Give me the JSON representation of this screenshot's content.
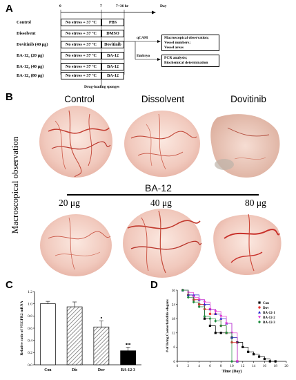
{
  "panelA": {
    "letter": "A",
    "timeline": {
      "t0": "0",
      "t7": "7",
      "t36": "7+36 hr",
      "unit": "Day"
    },
    "rows": [
      {
        "group": "Control",
        "stress": "No stress + 37 °C",
        "treat": "PBS"
      },
      {
        "group": "Dissolvent",
        "stress": "No stress + 37 °C",
        "treat": "DMSO"
      },
      {
        "group": "Dovitinib (40 μg)",
        "stress": "No stress + 37 °C",
        "treat": "Dovitinib"
      },
      {
        "group": "BA-12₁ (20 μg)",
        "stress": "No stress + 37 °C",
        "treat": "BA-12"
      },
      {
        "group": "BA-12₂ (40 μg)",
        "stress": "No stress + 37 °C",
        "treat": "BA-12"
      },
      {
        "group": "BA-12₃ (80 μg)",
        "stress": "No stress + 37 °C",
        "treat": "BA-12"
      }
    ],
    "qcam_label": "qCAM",
    "embryo_label": "Embryo",
    "qcam_box": [
      "Macroscopical observation;",
      "Vessel numbers;",
      "Vessel areas"
    ],
    "embryo_box": [
      "PCR analysis;",
      "Biochemical determination"
    ],
    "drug_note": "Drug-loading sponges"
  },
  "panelB": {
    "letter": "B",
    "side_label": "Macroscopical observation",
    "top_labels": [
      "Control",
      "Dissolvent",
      "Dovitinib"
    ],
    "group_label": "BA-12",
    "dose_labels": [
      "20 μg",
      "40 μg",
      "80 μg"
    ]
  },
  "panelC": {
    "letter": "C",
    "chart_data": {
      "type": "bar",
      "ylabel": "Relative ratio of VEGFR2 mRNA",
      "categories": [
        "Con",
        "Dis",
        "Dov",
        "BA-12-3"
      ],
      "values": [
        1.0,
        0.95,
        0.62,
        0.23
      ],
      "errors": [
        0.04,
        0.08,
        0.1,
        0.06
      ],
      "significance": [
        "",
        "",
        "•",
        "•••"
      ],
      "ylim": [
        0,
        1.2
      ],
      "yticks": [
        "0.0",
        "0.2",
        "0.4",
        "0.6",
        "0.8",
        "1.0",
        "1.2"
      ]
    }
  },
  "panelD": {
    "letter": "D",
    "chart_data": {
      "type": "line",
      "xlabel": "Time (Day)",
      "ylabel": "# of living Caenorhabditis elegans",
      "xlim": [
        0,
        20
      ],
      "ylim": [
        0,
        30
      ],
      "xticks": [
        "0",
        "2",
        "4",
        "6",
        "8",
        "10",
        "12",
        "14",
        "16",
        "18",
        "20"
      ],
      "yticks": [
        "0",
        "6",
        "12",
        "18",
        "24",
        "30"
      ],
      "series": [
        {
          "name": "Con",
          "color": "#000000",
          "marker": "square",
          "x": [
            1,
            2,
            3,
            4,
            5,
            6,
            7,
            8,
            9,
            10,
            11,
            12,
            13,
            14,
            15,
            16,
            17,
            18
          ],
          "y": [
            30,
            28,
            26,
            24,
            18,
            15,
            12,
            12,
            12,
            10,
            8,
            6,
            4,
            3,
            2,
            1,
            0,
            0
          ]
        },
        {
          "name": "Dov",
          "color": "#e8312f",
          "marker": "circle",
          "x": [
            1,
            2,
            3,
            4,
            5,
            6,
            7,
            8,
            9,
            10,
            11
          ],
          "y": [
            30,
            28,
            26,
            24,
            22,
            20,
            20,
            15,
            12,
            8,
            0
          ]
        },
        {
          "name": "BA-12-1",
          "color": "#2222cc",
          "marker": "triangle",
          "x": [
            1,
            2,
            3,
            4,
            5,
            6,
            7,
            8,
            9,
            10,
            11
          ],
          "y": [
            30,
            28,
            28,
            26,
            24,
            22,
            20,
            18,
            16,
            10,
            0
          ]
        },
        {
          "name": "BA-12-2",
          "color": "#e030d0",
          "marker": "triangle-down",
          "x": [
            1,
            2,
            3,
            4,
            5,
            6,
            7,
            8,
            9,
            10,
            11
          ],
          "y": [
            30,
            29,
            27,
            26,
            25,
            22,
            21,
            19,
            16,
            12,
            0
          ]
        },
        {
          "name": "BA-12-3",
          "color": "#1a8a3a",
          "marker": "diamond",
          "x": [
            1,
            2,
            3,
            4,
            5,
            6,
            7,
            8,
            9,
            10
          ],
          "y": [
            30,
            27,
            25,
            23,
            19,
            18,
            17,
            15,
            12,
            0
          ]
        }
      ]
    }
  }
}
